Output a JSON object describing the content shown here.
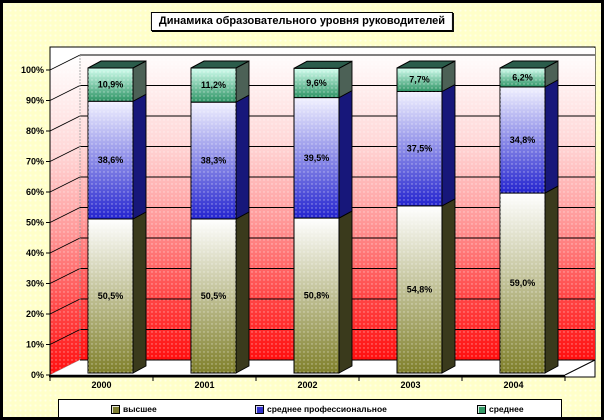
{
  "title": "Динамика образовательного уровня руководителей",
  "chart_data": {
    "type": "bar",
    "subtype": "stacked-3d",
    "title": "Динамика образовательного уровня руководителей",
    "categories": [
      "2000",
      "2001",
      "2002",
      "2003",
      "2004"
    ],
    "series": [
      {
        "name": "высшее",
        "values": [
          50.5,
          50.5,
          50.8,
          54.8,
          59.0
        ],
        "labels": [
          "50,5%",
          "50,5%",
          "50,8%",
          "54,8%",
          "59,0%"
        ],
        "gradient_top": "#ffffff",
        "gradient_bottom": "#80802b",
        "side_color": "#3a3a1c",
        "legend_color": "#808033"
      },
      {
        "name": "среднее профессиональное",
        "values": [
          38.6,
          38.3,
          39.5,
          37.5,
          34.8
        ],
        "labels": [
          "38,6%",
          "38,3%",
          "39,5%",
          "37,5%",
          "34,8%"
        ],
        "gradient_top": "#f2f2ff",
        "gradient_bottom": "#2424cf",
        "side_color": "#17177a",
        "legend_color": "#3333cc"
      },
      {
        "name": "среднее",
        "values": [
          10.9,
          11.2,
          9.6,
          7.7,
          6.2
        ],
        "labels": [
          "10,9%",
          "11,2%",
          "9,6%",
          "7,7%",
          "6,2%"
        ],
        "gradient_top": "#d4fff0",
        "gradient_bottom": "#2e9465",
        "side_color": "#4c6156",
        "top_face_color": "#2b5c4b",
        "legend_color": "#339966"
      }
    ],
    "y_tick_labels": [
      "0%",
      "10%",
      "20%",
      "30%",
      "40%",
      "50%",
      "60%",
      "70%",
      "80%",
      "90%",
      "100%"
    ],
    "ylim": [
      0,
      100
    ],
    "legend_position": "bottom",
    "wall_gradient_top": "#ffffff",
    "wall_gradient_bottom": "#ff0f0f",
    "background_color": "#ffffc9",
    "floor_color": "#ffffff",
    "gridline_color": "#000000"
  }
}
